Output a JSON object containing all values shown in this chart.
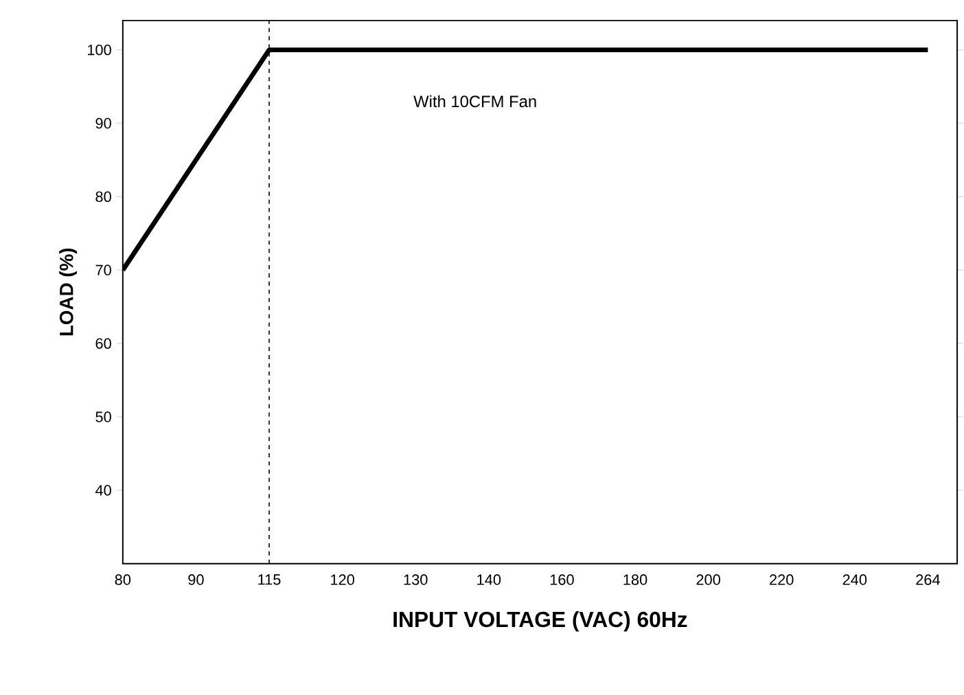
{
  "chart_data": {
    "type": "line",
    "categories": [
      "80",
      "90",
      "115",
      "120",
      "130",
      "140",
      "160",
      "180",
      "200",
      "220",
      "240",
      "264"
    ],
    "values": [
      70,
      85,
      100,
      100,
      100,
      100,
      100,
      100,
      100,
      100,
      100,
      100
    ],
    "color": "#000000",
    "xlabel": "INPUT VOLTAGE (VAC) 60Hz",
    "ylabel": "LOAD (%)",
    "ylim": [
      30,
      104
    ],
    "yticks": [
      40,
      50,
      60,
      70,
      80,
      90,
      100
    ],
    "ref_lines": [
      {
        "axis": "x",
        "value": "115",
        "line_style": "dashed"
      }
    ],
    "annotations": [
      "With 10CFM Fan"
    ],
    "grid": false,
    "marker": "none",
    "line_style": "solid"
  }
}
